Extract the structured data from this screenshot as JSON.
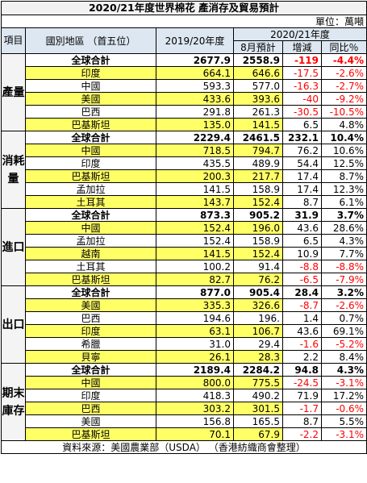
{
  "title": "2020/21年度世界棉花  產消存及貿易預計",
  "unit": "單位：萬噸",
  "header": {
    "item": "項目",
    "region": "國別地區  （首五位）",
    "prev_year": "2019/20年度",
    "cur_year": "2020/21年度",
    "forecast": "8月預計",
    "change": "增減",
    "yoy": "同比％"
  },
  "colors": {
    "highlight": "#ffff66",
    "negative": "#ff0000",
    "header": "#dde7f1"
  },
  "sections": [
    {
      "label": "產量",
      "rows": [
        {
          "country": "全球合計",
          "prev": "2677.9",
          "forecast": "2558.9",
          "change": "-119",
          "yoy": "-4.4%",
          "total": true,
          "yellow": false,
          "neg": true
        },
        {
          "country": "印度",
          "prev": "664.1",
          "forecast": "646.6",
          "change": "-17.5",
          "yoy": "-2.6%",
          "total": false,
          "yellow": true,
          "neg": true
        },
        {
          "country": "中國",
          "prev": "593.3",
          "forecast": "577.0",
          "change": "-16.3",
          "yoy": "-2.7%",
          "total": false,
          "yellow": false,
          "neg": true
        },
        {
          "country": "美國",
          "prev": "433.6",
          "forecast": "393.6",
          "change": "-40",
          "yoy": "-9.2%",
          "total": false,
          "yellow": true,
          "neg": true
        },
        {
          "country": "巴西",
          "prev": "291.8",
          "forecast": "261.3",
          "change": "-30.5",
          "yoy": "-10.5%",
          "total": false,
          "yellow": false,
          "neg": true
        },
        {
          "country": "巴基斯坦",
          "prev": "135.0",
          "forecast": "141.5",
          "change": "6.5",
          "yoy": "4.8%",
          "total": false,
          "yellow": true,
          "neg": false
        }
      ]
    },
    {
      "label": "消耗量",
      "rows": [
        {
          "country": "全球合計",
          "prev": "2229.4",
          "forecast": "2461.5",
          "change": "232.1",
          "yoy": "10.4%",
          "total": true,
          "yellow": false,
          "neg": false
        },
        {
          "country": "中國",
          "prev": "718.5",
          "forecast": "794.7",
          "change": "76.2",
          "yoy": "10.6%",
          "total": false,
          "yellow": true,
          "neg": false
        },
        {
          "country": "印度",
          "prev": "435.5",
          "forecast": "489.9",
          "change": "54.4",
          "yoy": "12.5%",
          "total": false,
          "yellow": false,
          "neg": false
        },
        {
          "country": "巴基斯坦",
          "prev": "200.3",
          "forecast": "217.7",
          "change": "17.4",
          "yoy": "8.7%",
          "total": false,
          "yellow": true,
          "neg": false
        },
        {
          "country": "孟加拉",
          "prev": "141.5",
          "forecast": "158.9",
          "change": "17.4",
          "yoy": "12.3%",
          "total": false,
          "yellow": false,
          "neg": false
        },
        {
          "country": "土耳其",
          "prev": "143.7",
          "forecast": "152.4",
          "change": "8.7",
          "yoy": "6.1%",
          "total": false,
          "yellow": true,
          "neg": false
        }
      ]
    },
    {
      "label": "進口",
      "rows": [
        {
          "country": "全球合計",
          "prev": "873.3",
          "forecast": "905.2",
          "change": "31.9",
          "yoy": "3.7%",
          "total": true,
          "yellow": false,
          "neg": false
        },
        {
          "country": "中國",
          "prev": "152.4",
          "forecast": "196.0",
          "change": "43.6",
          "yoy": "28.6%",
          "total": false,
          "yellow": true,
          "neg": false
        },
        {
          "country": "孟加拉",
          "prev": "152.4",
          "forecast": "158.9",
          "change": "6.5",
          "yoy": "4.3%",
          "total": false,
          "yellow": false,
          "neg": false
        },
        {
          "country": "越南",
          "prev": "141.5",
          "forecast": "152.4",
          "change": "10.9",
          "yoy": "7.7%",
          "total": false,
          "yellow": true,
          "neg": false
        },
        {
          "country": "土耳其",
          "prev": "100.2",
          "forecast": "91.4",
          "change": "-8.8",
          "yoy": "-8.8%",
          "total": false,
          "yellow": false,
          "neg": true
        },
        {
          "country": "巴基斯坦",
          "prev": "82.7",
          "forecast": "76.2",
          "change": "-6.5",
          "yoy": "-7.9%",
          "total": false,
          "yellow": true,
          "neg": true
        }
      ]
    },
    {
      "label": "出口",
      "rows": [
        {
          "country": "全球合計",
          "prev": "877.0",
          "forecast": "905.4",
          "change": "28.4",
          "yoy": "3.2%",
          "total": true,
          "yellow": false,
          "neg": false
        },
        {
          "country": "美國",
          "prev": "335.3",
          "forecast": "326.6",
          "change": "-8.7",
          "yoy": "-2.6%",
          "total": false,
          "yellow": true,
          "neg": true
        },
        {
          "country": "巴西",
          "prev": "194.6",
          "forecast": "196.",
          "change": "1.4",
          "yoy": "0.7%",
          "total": false,
          "yellow": false,
          "neg": false
        },
        {
          "country": "印度",
          "prev": "63.1",
          "forecast": "106.7",
          "change": "43.6",
          "yoy": "69.1%",
          "total": false,
          "yellow": true,
          "neg": false
        },
        {
          "country": "希臘",
          "prev": "31.0",
          "forecast": "29.4",
          "change": "-1.6",
          "yoy": "-5.2%",
          "total": false,
          "yellow": false,
          "neg": true
        },
        {
          "country": "貝寧",
          "prev": "26.1",
          "forecast": "28.3",
          "change": "2.2",
          "yoy": "8.4%",
          "total": false,
          "yellow": true,
          "neg": false
        }
      ]
    },
    {
      "label": "期末庫存",
      "rows": [
        {
          "country": "全球合計",
          "prev": "2189.4",
          "forecast": "2284.2",
          "change": "94.8",
          "yoy": "4.3%",
          "total": true,
          "yellow": false,
          "neg": false
        },
        {
          "country": "中國",
          "prev": "800.0",
          "forecast": "775.5",
          "change": "-24.5",
          "yoy": "-3.1%",
          "total": false,
          "yellow": true,
          "neg": true
        },
        {
          "country": "印度",
          "prev": "418.3",
          "forecast": "490.2",
          "change": "71.9",
          "yoy": "17.2%",
          "total": false,
          "yellow": false,
          "neg": false
        },
        {
          "country": "巴西",
          "prev": "303.2",
          "forecast": "301.5",
          "change": "-1.7",
          "yoy": "-0.6%",
          "total": false,
          "yellow": true,
          "neg": true
        },
        {
          "country": "美國",
          "prev": "156.8",
          "forecast": "165.5",
          "change": "8.7",
          "yoy": "5.5%",
          "total": false,
          "yellow": false,
          "neg": false
        },
        {
          "country": "巴基斯坦",
          "prev": "70.1",
          "forecast": "67.9",
          "change": "-2.2",
          "yoy": "-3.1%",
          "total": false,
          "yellow": true,
          "neg": true
        }
      ]
    }
  ],
  "footer": "資料來源：美國農業部（USDA）  （香港紡織商會整理）"
}
